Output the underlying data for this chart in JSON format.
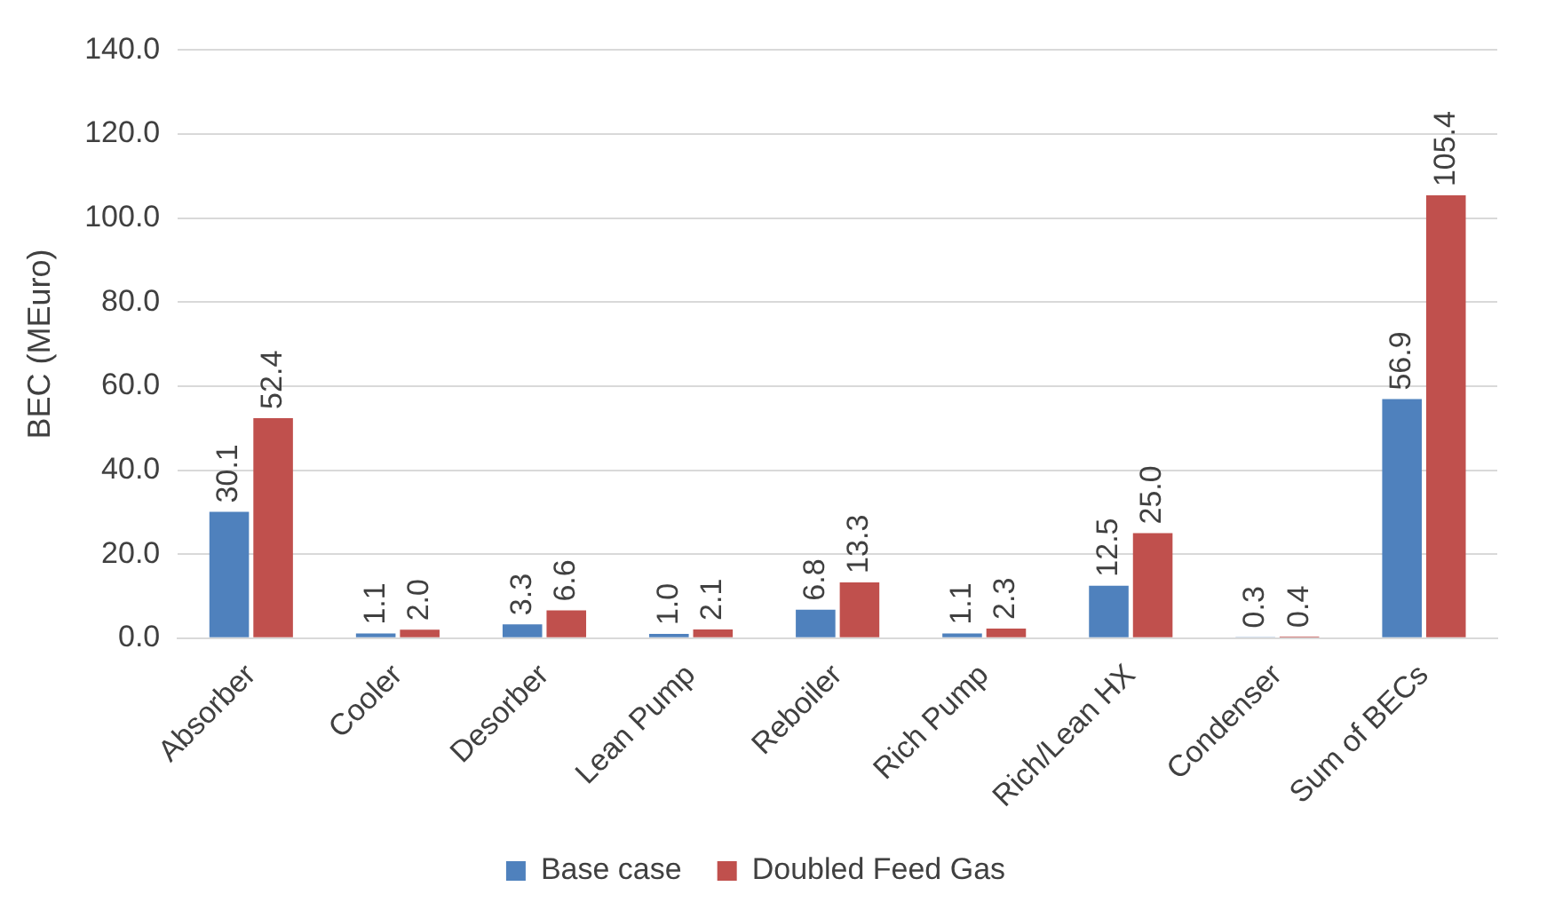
{
  "chart_data": {
    "type": "bar",
    "ylabel": "BEC (MEuro)",
    "categories": [
      "Absorber",
      "Cooler",
      "Desorber",
      "Lean Pump",
      "Reboiler",
      "Rich Pump",
      "Rich/Lean HX",
      "Condenser",
      "Sum of BECs"
    ],
    "series": [
      {
        "name": "Base case",
        "color": "#4f81bd",
        "values": [
          30.1,
          1.1,
          3.3,
          1.0,
          6.8,
          1.1,
          12.5,
          0.3,
          56.9
        ],
        "value_labels": [
          "30.1",
          "1.1",
          "3.3",
          "1.0",
          "6.8",
          "1.1",
          "12.5",
          "0.3",
          "56.9"
        ]
      },
      {
        "name": "Doubled Feed Gas",
        "color": "#c0504d",
        "values": [
          52.4,
          2.0,
          6.6,
          2.1,
          13.3,
          2.3,
          25.0,
          0.4,
          105.4
        ],
        "value_labels": [
          "52.4",
          "2.0",
          "6.6",
          "2.1",
          "13.3",
          "2.3",
          "25.0",
          "0.4",
          "105.4"
        ]
      }
    ],
    "ylim": [
      0,
      140
    ],
    "yticks": [
      {
        "value": 0,
        "label": "0.0"
      },
      {
        "value": 20,
        "label": "20.0"
      },
      {
        "value": 40,
        "label": "40.0"
      },
      {
        "value": 60,
        "label": "60.0"
      },
      {
        "value": 80,
        "label": "80.0"
      },
      {
        "value": 100,
        "label": "100.0"
      },
      {
        "value": 120,
        "label": "120.0"
      },
      {
        "value": 140,
        "label": "140.0"
      }
    ],
    "grid": "y",
    "legend": "bottom"
  }
}
